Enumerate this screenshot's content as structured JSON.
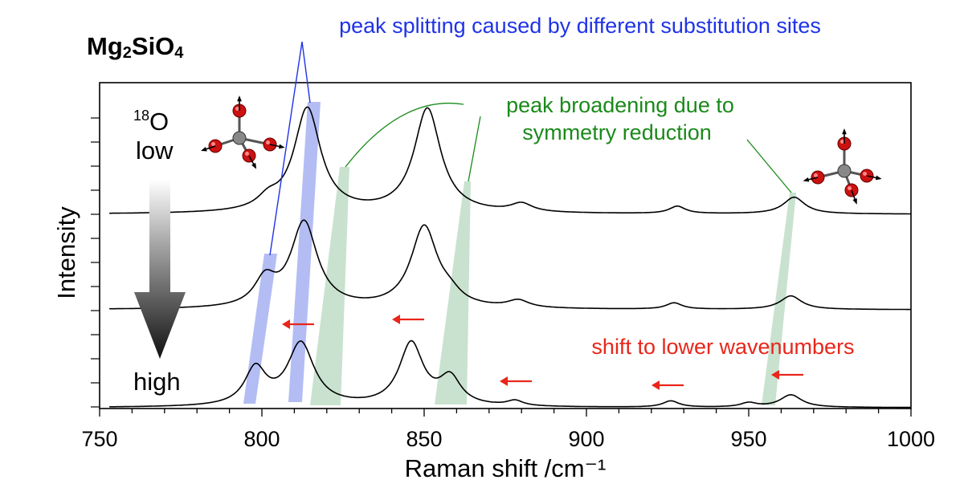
{
  "compound": {
    "prefix": "Mg",
    "sub1": "2",
    "mid": "SiO",
    "sub2": "4"
  },
  "labels": {
    "isotope_mass": "18",
    "isotope_symbol": "O",
    "low": "low",
    "high": "high"
  },
  "annotations": {
    "splitting": "peak splitting caused by different substitution sites",
    "broadening_line1": "peak broadening due to",
    "broadening_line2": "symmetry reduction",
    "shift": "shift to lower wavenumbers"
  },
  "colors": {
    "splitting": "#1f33e6",
    "broadening": "#1a8a1a",
    "shift": "#e8261a",
    "splitting_band": "#b3bdf4",
    "broadening_band": "#c9e2cf",
    "trace": "#000000",
    "oxygen": "#cc1111",
    "silicon": "#888888"
  },
  "icons": [
    "SiO4-tetrahedron-icon",
    "SiO4-tetrahedron-icon",
    "gradient-arrow-down-icon"
  ],
  "chart_data": {
    "type": "line",
    "title": "",
    "xlabel": "Raman shift /cm⁻¹",
    "ylabel": "Intensity",
    "xlim": [
      750,
      1000
    ],
    "xticks": [
      750,
      800,
      850,
      900,
      950,
      1000
    ],
    "x_minor_step": 10,
    "y_ticks_shown": false,
    "legend": "none",
    "series": [
      {
        "peaks": [
          {
            "center": 802,
            "amp": 0.1,
            "width": 4
          },
          {
            "center": 814,
            "amp": 1.0,
            "width": 5
          },
          {
            "center": 851,
            "amp": 1.0,
            "width": 5
          },
          {
            "center": 880,
            "amp": 0.08,
            "width": 4
          },
          {
            "center": 928,
            "amp": 0.07,
            "width": 3
          },
          {
            "center": 964,
            "amp": 0.16,
            "width": 4
          }
        ]
      },
      {
        "peaks": [
          {
            "center": 801,
            "amp": 0.25,
            "width": 4
          },
          {
            "center": 813,
            "amp": 0.82,
            "width": 5
          },
          {
            "center": 850,
            "amp": 0.78,
            "width": 5
          },
          {
            "center": 858,
            "amp": 0.08,
            "width": 4
          },
          {
            "center": 879,
            "amp": 0.07,
            "width": 4
          },
          {
            "center": 927,
            "amp": 0.06,
            "width": 3
          },
          {
            "center": 963,
            "amp": 0.13,
            "width": 4
          }
        ]
      },
      {
        "peaks": [
          {
            "center": 798,
            "amp": 0.35,
            "width": 4
          },
          {
            "center": 812,
            "amp": 0.6,
            "width": 5
          },
          {
            "center": 846,
            "amp": 0.6,
            "width": 4.5
          },
          {
            "center": 858,
            "amp": 0.26,
            "width": 4
          },
          {
            "center": 878,
            "amp": 0.05,
            "width": 3
          },
          {
            "center": 926,
            "amp": 0.06,
            "width": 3
          },
          {
            "center": 950,
            "amp": 0.04,
            "width": 3
          },
          {
            "center": 963,
            "amp": 0.12,
            "width": 4
          }
        ]
      }
    ]
  }
}
